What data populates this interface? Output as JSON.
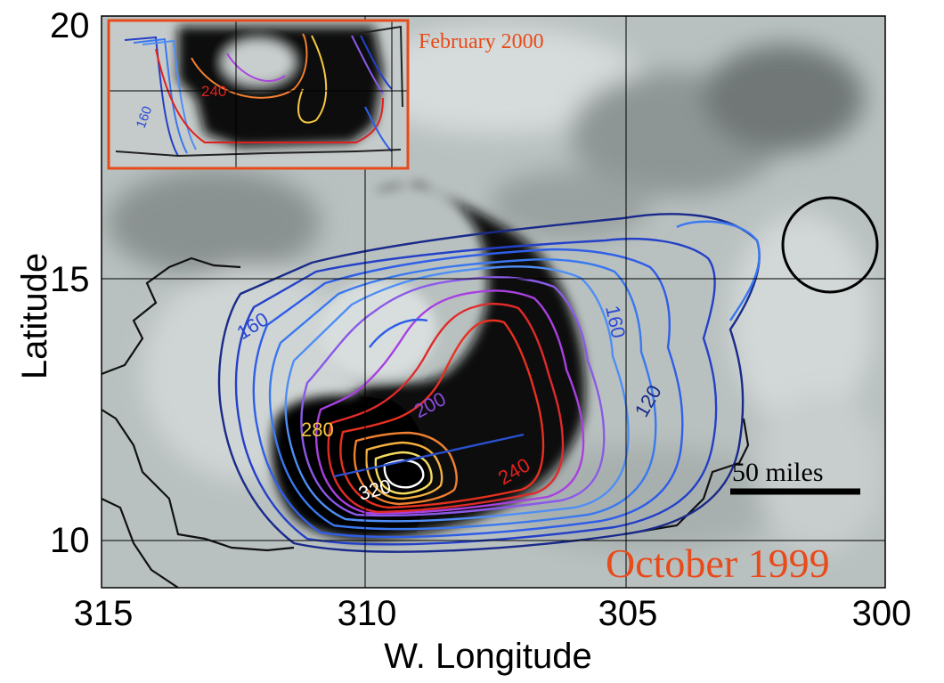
{
  "axes": {
    "x_label": "W. Longitude",
    "y_label": "Latitude",
    "x_ticks": [
      "315",
      "310",
      "305",
      "300"
    ],
    "y_ticks": [
      "20",
      "15",
      "10"
    ]
  },
  "main_panel": {
    "date_label": "October 1999",
    "date_color": "#e84a1a",
    "scale_bar_label": "50 miles",
    "contour_labels": [
      "160",
      "160",
      "120",
      "200",
      "280",
      "240",
      "320"
    ]
  },
  "inset_panel": {
    "date_label": "February 2000",
    "frame_color": "#e84a1a",
    "contour_labels": [
      "240",
      "160"
    ]
  },
  "colors": {
    "contour_dark_blue": "#1a2a8a",
    "contour_blue": "#2050e0",
    "contour_purple": "#9a3adf",
    "contour_red": "#e02020",
    "contour_orange": "#f07020",
    "contour_yellow": "#f5c840",
    "contour_white": "#ffffff",
    "coastline": "#111111",
    "track_line": "#2a50d0"
  }
}
